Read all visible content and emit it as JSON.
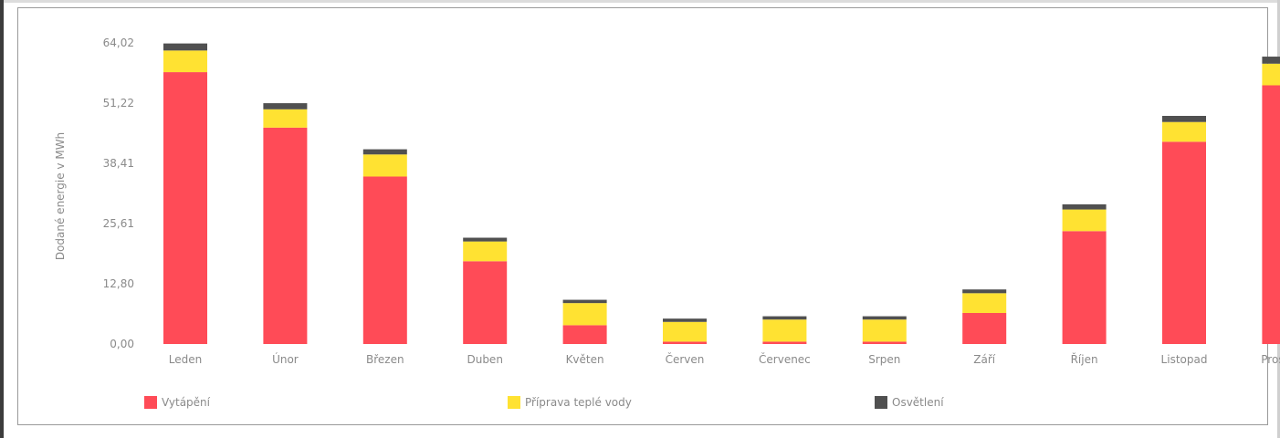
{
  "chart_data": {
    "type": "bar",
    "stacked": true,
    "title": "",
    "xlabel": "",
    "ylabel": "Dodané energie v MWh",
    "ylim": [
      0,
      64.02
    ],
    "yticks": [
      "0,00",
      "12,80",
      "25,61",
      "38,41",
      "51,22",
      "64,02"
    ],
    "grid": false,
    "legend_position": "bottom",
    "categories": [
      "Leden",
      "Únor",
      "Březen",
      "Duben",
      "Květen",
      "Červen",
      "Červenec",
      "Srpen",
      "Září",
      "Říjen",
      "Listopad",
      "Prosinec"
    ],
    "series": [
      {
        "name": "Vytápění",
        "color": "#ff4b57",
        "values": [
          57.8,
          46.0,
          35.6,
          17.6,
          4.0,
          0.5,
          0.5,
          0.5,
          6.6,
          24.0,
          43.0,
          55.0
        ]
      },
      {
        "name": "Příprava teplé vody",
        "color": "#ffe232",
        "values": [
          4.6,
          3.9,
          4.7,
          4.2,
          4.7,
          4.2,
          4.7,
          4.7,
          4.2,
          4.6,
          4.2,
          4.6
        ]
      },
      {
        "name": "Osvětlení",
        "color": "#505050",
        "values": [
          1.5,
          1.3,
          1.1,
          0.8,
          0.7,
          0.7,
          0.7,
          0.7,
          0.8,
          1.1,
          1.3,
          1.5
        ]
      }
    ]
  }
}
